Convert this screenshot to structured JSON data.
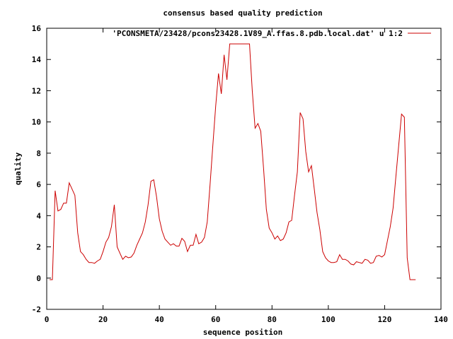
{
  "chart_data": {
    "type": "line",
    "title": "consensus based quality prediction",
    "xlabel": "sequence position",
    "ylabel": "quality",
    "xlim": [
      0,
      140
    ],
    "ylim": [
      -2,
      16
    ],
    "xticks": [
      0,
      20,
      40,
      60,
      80,
      100,
      120,
      140
    ],
    "yticks": [
      -2,
      0,
      2,
      4,
      6,
      8,
      10,
      12,
      14,
      16
    ],
    "legend_position": "top-right",
    "series": [
      {
        "name": "'PCONSMETA/23428/pcons23428.1V89_A.ffas.8.pdb.local.dat' u 1:2",
        "color": "#cc0000",
        "x": [
          1,
          2,
          3,
          4,
          5,
          6,
          7,
          8,
          9,
          10,
          11,
          12,
          13,
          14,
          15,
          16,
          17,
          18,
          19,
          20,
          21,
          22,
          23,
          24,
          25,
          26,
          27,
          28,
          29,
          30,
          31,
          32,
          33,
          34,
          35,
          36,
          37,
          38,
          39,
          40,
          41,
          42,
          43,
          44,
          45,
          46,
          47,
          48,
          49,
          50,
          51,
          52,
          53,
          54,
          55,
          56,
          57,
          58,
          59,
          60,
          61,
          62,
          63,
          64,
          65,
          66,
          67,
          68,
          69,
          70,
          71,
          72,
          73,
          74,
          75,
          76,
          77,
          78,
          79,
          80,
          81,
          82,
          83,
          84,
          85,
          86,
          87,
          88,
          89,
          90,
          91,
          92,
          93,
          94,
          95,
          96,
          97,
          98,
          99,
          100,
          101,
          102,
          103,
          104,
          105,
          106,
          107,
          108,
          109,
          110,
          111,
          112,
          113,
          114,
          115,
          116,
          117,
          118,
          119,
          120,
          121,
          122,
          123,
          124,
          125,
          126,
          127,
          128,
          129,
          130,
          131
        ],
        "y": [
          -0.1,
          -0.1,
          5.6,
          4.3,
          4.4,
          4.8,
          4.8,
          6.1,
          5.7,
          5.3,
          2.9,
          1.7,
          1.5,
          1.2,
          1.0,
          1.0,
          0.95,
          1.1,
          1.2,
          1.7,
          2.3,
          2.6,
          3.3,
          4.7,
          2.0,
          1.6,
          1.2,
          1.4,
          1.3,
          1.35,
          1.6,
          2.1,
          2.5,
          2.9,
          3.6,
          4.7,
          6.2,
          6.3,
          5.2,
          3.8,
          3.0,
          2.5,
          2.3,
          2.1,
          2.2,
          2.05,
          2.05,
          2.55,
          2.35,
          1.7,
          2.1,
          2.1,
          2.8,
          2.2,
          2.3,
          2.6,
          3.6,
          6.0,
          8.5,
          11.0,
          13.1,
          11.8,
          14.3,
          12.7,
          15.0,
          15.0,
          15.0,
          15.0,
          15.0,
          15.0,
          15.0,
          15.0,
          12.0,
          9.6,
          9.9,
          9.4,
          7.0,
          4.4,
          3.2,
          2.9,
          2.5,
          2.7,
          2.4,
          2.5,
          2.9,
          3.6,
          3.7,
          5.3,
          6.8,
          10.6,
          10.2,
          8.1,
          6.8,
          7.2,
          5.7,
          4.2,
          3.1,
          1.7,
          1.3,
          1.1,
          1.0,
          1.0,
          1.05,
          1.5,
          1.2,
          1.2,
          1.1,
          0.9,
          0.85,
          1.05,
          1.0,
          0.95,
          1.2,
          1.15,
          0.95,
          1.0,
          1.4,
          1.45,
          1.35,
          1.5,
          2.4,
          3.3,
          4.5,
          6.5,
          8.5,
          10.5,
          10.3,
          1.3,
          -0.1,
          -0.1,
          -0.1
        ]
      }
    ]
  }
}
